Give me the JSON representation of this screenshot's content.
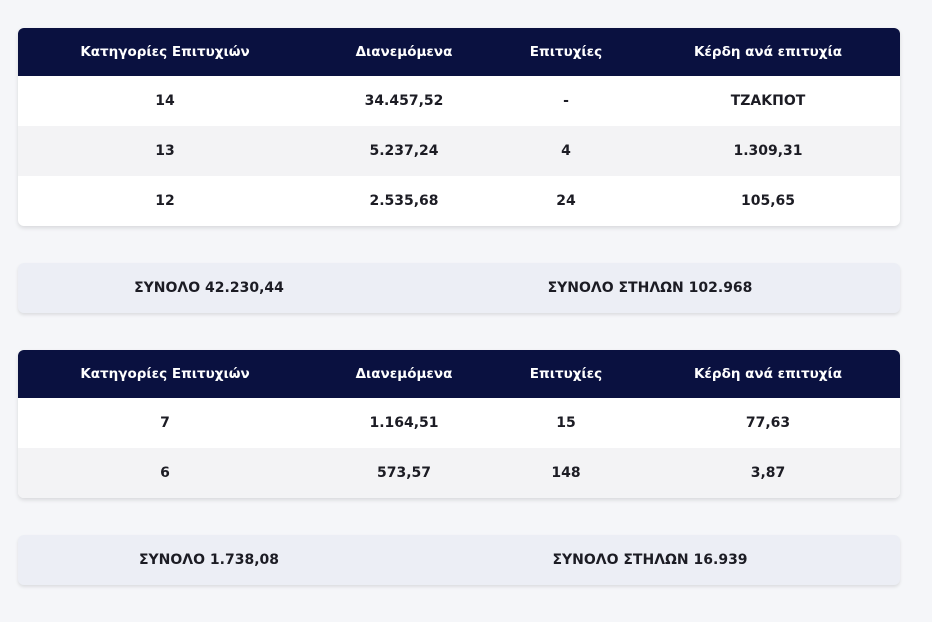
{
  "sections": [
    {
      "table": {
        "headers": [
          "Κατηγορίες Επιτυχιών",
          "Διανεμόμενα",
          "Επιτυχίες",
          "Κέρδη ανά επιτυχία"
        ],
        "rows": [
          [
            "14",
            "34.457,52",
            "-",
            "ΤΖΑΚΠΟΤ"
          ],
          [
            "13",
            "5.237,24",
            "4",
            "1.309,31"
          ],
          [
            "12",
            "2.535,68",
            "24",
            "105,65"
          ]
        ]
      },
      "summary": [
        "ΣΥΝΟΛΟ 42.230,44",
        "ΣΥΝΟΛΟ ΣΤΗΛΩΝ 102.968"
      ]
    },
    {
      "table": {
        "headers": [
          "Κατηγορίες Επιτυχιών",
          "Διανεμόμενα",
          "Επιτυχίες",
          "Κέρδη ανά επιτυχία"
        ],
        "rows": [
          [
            "7",
            "1.164,51",
            "15",
            "77,63"
          ],
          [
            "6",
            "573,57",
            "148",
            "3,87"
          ]
        ]
      },
      "summary": [
        "ΣΥΝΟΛΟ 1.738,08",
        "ΣΥΝΟΛΟ ΣΤΗΛΩΝ 16.939"
      ]
    }
  ]
}
